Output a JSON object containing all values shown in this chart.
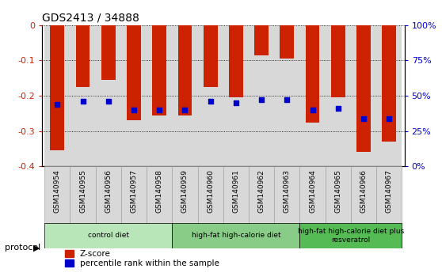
{
  "title": "GDS2413 / 34888",
  "samples": [
    "GSM140954",
    "GSM140955",
    "GSM140956",
    "GSM140957",
    "GSM140958",
    "GSM140959",
    "GSM140960",
    "GSM140961",
    "GSM140962",
    "GSM140963",
    "GSM140964",
    "GSM140965",
    "GSM140966",
    "GSM140967"
  ],
  "zscore": [
    -0.355,
    -0.175,
    -0.155,
    -0.27,
    -0.255,
    -0.255,
    -0.175,
    -0.205,
    -0.085,
    -0.095,
    -0.275,
    -0.205,
    -0.36,
    -0.33
  ],
  "percentile": [
    -0.225,
    -0.215,
    -0.215,
    -0.24,
    -0.24,
    -0.24,
    -0.215,
    -0.22,
    -0.21,
    -0.21,
    -0.24,
    -0.235,
    -0.265,
    -0.265
  ],
  "bar_color": "#cc2200",
  "dot_color": "#0000cc",
  "ylim_left": [
    -0.4,
    0.0
  ],
  "yticks_left": [
    0.0,
    -0.1,
    -0.2,
    -0.3,
    -0.4
  ],
  "ytick_labels_left": [
    "0",
    "-0.1",
    "-0.2",
    "-0.3",
    "-0.4"
  ],
  "ytick_labels_right": [
    "100%",
    "75%",
    "50%",
    "25%",
    "0%"
  ],
  "grid_color": "#000000",
  "bg_color": "#ffffff",
  "col_bg": "#d8d8d8",
  "groups": [
    {
      "label": "control diet",
      "start": 0,
      "end": 5,
      "color": "#b8e6b8"
    },
    {
      "label": "high-fat high-calorie diet",
      "start": 5,
      "end": 10,
      "color": "#88cc88"
    },
    {
      "label": "high-fat high-calorie diet plus\nresveratrol",
      "start": 10,
      "end": 14,
      "color": "#55bb55"
    }
  ],
  "protocol_label": "protocol",
  "legend_zscore": "Z-score",
  "legend_pct": "percentile rank within the sample"
}
